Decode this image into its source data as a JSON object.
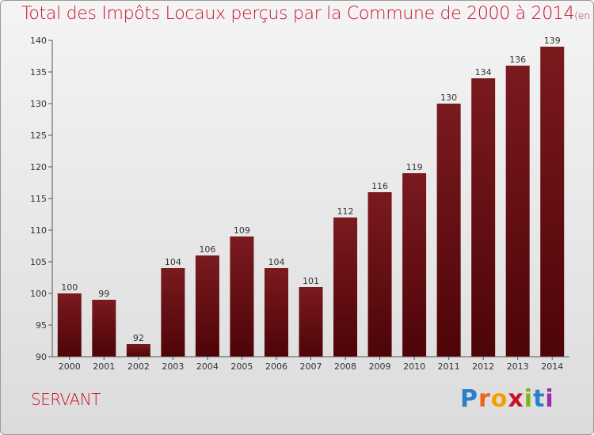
{
  "chart_data": {
    "type": "bar",
    "title": "Total des Impôts Locaux perçus par la Commune de 2000 à 2014",
    "subtitle": "(en milliers d'€)",
    "categories": [
      "2000",
      "2001",
      "2002",
      "2003",
      "2004",
      "2005",
      "2006",
      "2007",
      "2008",
      "2009",
      "2010",
      "2011",
      "2012",
      "2013",
      "2014"
    ],
    "values": [
      100,
      99,
      92,
      104,
      106,
      109,
      104,
      101,
      112,
      116,
      119,
      130,
      134,
      136,
      139
    ],
    "ylim": [
      90,
      140
    ],
    "yticks": [
      90,
      95,
      100,
      105,
      110,
      115,
      120,
      125,
      130,
      135,
      140
    ],
    "grid": false,
    "legend": "none",
    "bar_color": "#7a1a1f",
    "bar_color_dark": "#4e0408"
  },
  "footer": {
    "commune": "SERVANT",
    "logo": "Proxiti"
  }
}
